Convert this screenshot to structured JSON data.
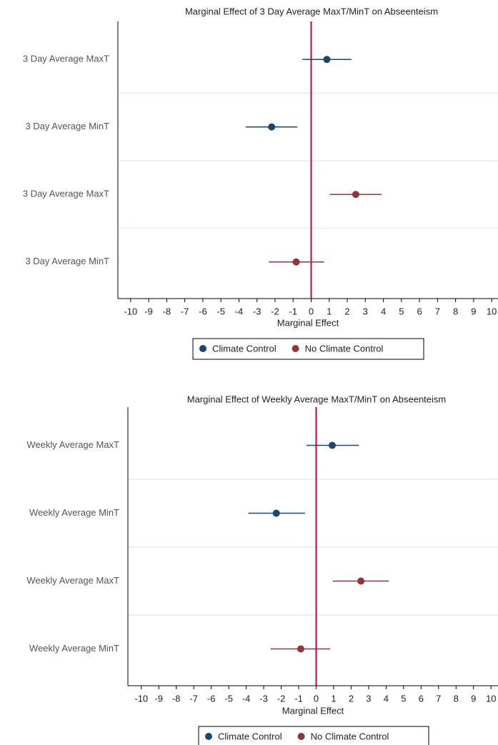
{
  "chart_data": [
    {
      "type": "coefplot",
      "title": "Marginal Effect of 3 Day Average MaxT/MinT on Abseenteism",
      "categories": [
        "3 Day Average MaxT",
        "3 Day Average MinT",
        "3 Day Average MaxT",
        "3 Day Average MinT"
      ],
      "xlabel": "Marginal Effect",
      "xlim": [
        -10.35,
        10.35
      ],
      "xticks": [
        -10,
        -9,
        -8,
        -7,
        -6,
        -5,
        -4,
        -3,
        -2,
        -1,
        0,
        1,
        2,
        3,
        4,
        5,
        6,
        7,
        8,
        9,
        10
      ],
      "zero_line_color": "#c10534",
      "grid": true,
      "series": [
        {
          "name": "Climate Control",
          "color": "#1a476f",
          "values": [
            0.87,
            -2.19,
            null,
            null
          ],
          "lower": [
            -0.49,
            -3.63,
            null,
            null
          ],
          "upper": [
            2.23,
            -0.76,
            null,
            null
          ]
        },
        {
          "name": "No Climate Control",
          "color": "#90353b",
          "values": [
            null,
            null,
            2.47,
            -0.83
          ],
          "lower": [
            null,
            null,
            1.03,
            -2.35
          ],
          "upper": [
            null,
            null,
            3.9,
            0.72
          ]
        }
      ]
    },
    {
      "type": "coefplot",
      "title": "Marginal Effect of Weekly Average MaxT/MinT on Abseenteism",
      "categories": [
        "Weekly Average MaxT",
        "Weekly Average MinT",
        "Weekly Average MaxT",
        "Weekly Average MinT"
      ],
      "xlabel": "Marginal Effect",
      "xlim": [
        -10.4,
        10.4
      ],
      "xticks": [
        -10,
        -9,
        -8,
        -7,
        -6,
        -5,
        -4,
        -3,
        -2,
        -1,
        0,
        1,
        2,
        3,
        4,
        5,
        6,
        7,
        8,
        9,
        10
      ],
      "zero_line_color": "#c10534",
      "grid": true,
      "series": [
        {
          "name": "Climate Control",
          "color": "#1a476f",
          "values": [
            0.92,
            -2.28,
            null,
            null
          ],
          "lower": [
            -0.56,
            -3.88,
            null,
            null
          ],
          "upper": [
            2.44,
            -0.64,
            null,
            null
          ]
        },
        {
          "name": "No Climate Control",
          "color": "#90353b",
          "values": [
            null,
            null,
            2.56,
            -0.88
          ],
          "lower": [
            null,
            null,
            0.96,
            -2.6
          ],
          "upper": [
            null,
            null,
            4.16,
            0.8
          ]
        }
      ]
    }
  ]
}
